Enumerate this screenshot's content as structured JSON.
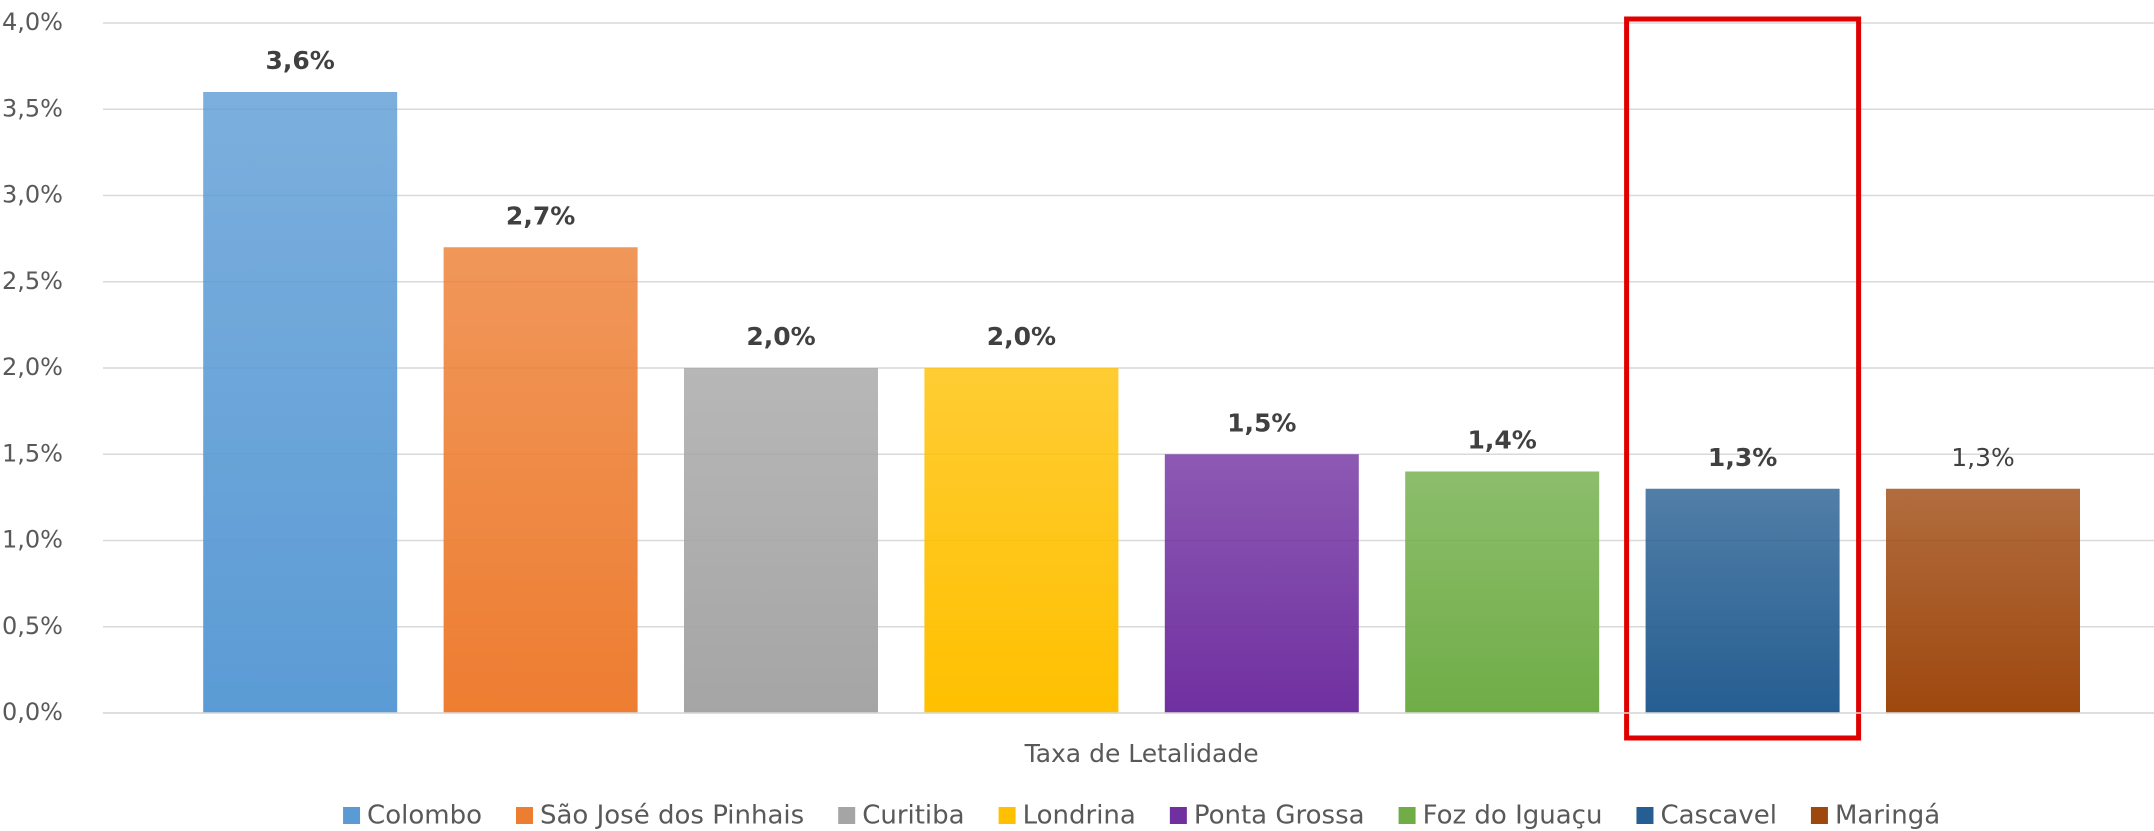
{
  "chart_data": {
    "type": "bar",
    "categories": [
      "Taxa de Letalidade"
    ],
    "series": [
      {
        "name": "Colombo",
        "color": "#5b9bd5",
        "values": [
          3.6
        ],
        "value_labels": [
          "3,6%"
        ]
      },
      {
        "name": "São José dos Pinhais",
        "color": "#ed7d31",
        "values": [
          2.7
        ],
        "value_labels": [
          "2,7%"
        ]
      },
      {
        "name": "Curitiba",
        "color": "#a5a5a5",
        "values": [
          2.0
        ],
        "value_labels": [
          "2,0%"
        ]
      },
      {
        "name": "Londrina",
        "color": "#ffc000",
        "values": [
          2.0
        ],
        "value_labels": [
          "2,0%"
        ]
      },
      {
        "name": "Ponta Grossa",
        "color": "#7030a0",
        "values": [
          1.5
        ],
        "value_labels": [
          "1,5%"
        ]
      },
      {
        "name": "Foz do Iguaçu",
        "color": "#70ad47",
        "values": [
          1.4
        ],
        "value_labels": [
          "1,4%"
        ]
      },
      {
        "name": "Cascavel",
        "color": "#255e91",
        "values": [
          1.3
        ],
        "value_labels": [
          "1,3%"
        ]
      },
      {
        "name": "Maringá",
        "color": "#9e480e",
        "values": [
          1.3
        ],
        "value_labels": [
          "1,3%"
        ]
      }
    ],
    "ylim": [
      0,
      4
    ],
    "yticks": [
      {
        "value": 0,
        "label": "0,0%"
      },
      {
        "value": 0.5,
        "label": "0,5%"
      },
      {
        "value": 1,
        "label": "1,0%"
      },
      {
        "value": 1.5,
        "label": "1,5%"
      },
      {
        "value": 2,
        "label": "2,0%"
      },
      {
        "value": 2.5,
        "label": "2,5%"
      },
      {
        "value": 3,
        "label": "3,0%"
      },
      {
        "value": 3.5,
        "label": "3,5%"
      },
      {
        "value": 4,
        "label": "4,0%"
      }
    ],
    "grid": true,
    "legend": "bottom"
  }
}
